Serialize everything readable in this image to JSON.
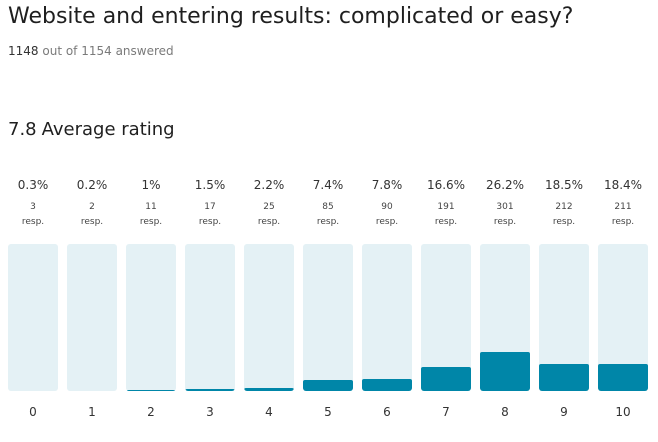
{
  "header": {
    "title": "Website and entering results: complicated or easy?",
    "answered_count": "1148",
    "answered_suffix": "out of 1154 answered"
  },
  "summary": {
    "average_value": "7.8",
    "average_label": "Average rating"
  },
  "colors": {
    "fill": "#0086a8",
    "track": "#e4f1f5"
  },
  "chart_data": {
    "type": "bar",
    "categories": [
      "0",
      "1",
      "2",
      "3",
      "4",
      "5",
      "6",
      "7",
      "8",
      "9",
      "10"
    ],
    "values": [
      3,
      2,
      11,
      17,
      25,
      85,
      90,
      191,
      301,
      212,
      211
    ],
    "percent_labels": [
      "0.3%",
      "0.2%",
      "1%",
      "1.5%",
      "2.2%",
      "7.4%",
      "7.8%",
      "16.6%",
      "26.2%",
      "18.5%",
      "18.4%"
    ],
    "response_unit": "resp.",
    "ylim": [
      0,
      1148
    ]
  }
}
